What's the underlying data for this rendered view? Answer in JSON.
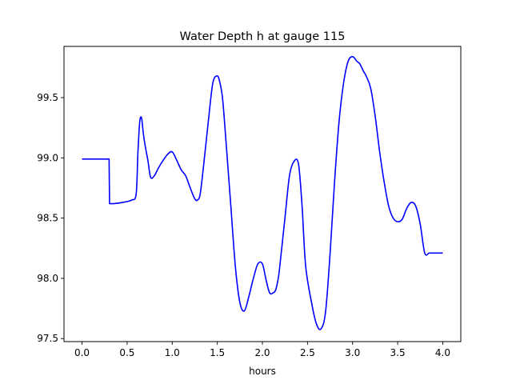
{
  "chart_data": {
    "type": "line",
    "title": "Water Depth h at gauge 115",
    "xlabel": "hours",
    "ylabel": "",
    "xlim": [
      -0.2,
      4.2
    ],
    "ylim": [
      97.475,
      99.925
    ],
    "x_ticks": [
      0.0,
      0.5,
      1.0,
      1.5,
      2.0,
      2.5,
      3.0,
      3.5,
      4.0
    ],
    "x_tick_labels": [
      "0.0",
      "0.5",
      "1.0",
      "1.5",
      "2.0",
      "2.5",
      "3.0",
      "3.5",
      "4.0"
    ],
    "y_ticks": [
      97.5,
      98.0,
      98.5,
      99.0,
      99.5
    ],
    "y_tick_labels": [
      "97.5",
      "98.0",
      "98.5",
      "99.0",
      "99.5"
    ],
    "grid": false,
    "series": [
      {
        "color": "#0000ff",
        "x": [
          0.0,
          0.15,
          0.3,
          0.305,
          0.35,
          0.45,
          0.55,
          0.6,
          0.62,
          0.64,
          0.66,
          0.68,
          0.7,
          0.73,
          0.76,
          0.8,
          0.85,
          0.9,
          0.95,
          1.0,
          1.05,
          1.1,
          1.15,
          1.2,
          1.25,
          1.28,
          1.31,
          1.35,
          1.4,
          1.45,
          1.5,
          1.53,
          1.56,
          1.6,
          1.65,
          1.7,
          1.75,
          1.8,
          1.85,
          1.9,
          1.95,
          2.0,
          2.04,
          2.08,
          2.12,
          2.15,
          2.18,
          2.2,
          2.25,
          2.3,
          2.35,
          2.4,
          2.44,
          2.48,
          2.55,
          2.6,
          2.65,
          2.7,
          2.75,
          2.8,
          2.85,
          2.9,
          2.95,
          3.0,
          3.05,
          3.08,
          3.12,
          3.15,
          3.2,
          3.25,
          3.3,
          3.35,
          3.4,
          3.45,
          3.5,
          3.55,
          3.6,
          3.65,
          3.7,
          3.75,
          3.8,
          3.85,
          3.9,
          3.95,
          4.0
        ],
        "y": [
          98.99,
          98.99,
          98.99,
          98.62,
          98.62,
          98.63,
          98.65,
          98.7,
          99.05,
          99.3,
          99.33,
          99.2,
          99.1,
          98.98,
          98.84,
          98.85,
          98.92,
          98.98,
          99.03,
          99.05,
          98.98,
          98.9,
          98.85,
          98.75,
          98.66,
          98.65,
          98.7,
          98.95,
          99.3,
          99.62,
          99.68,
          99.62,
          99.48,
          99.1,
          98.6,
          98.1,
          97.8,
          97.73,
          97.85,
          98.0,
          98.12,
          98.12,
          97.99,
          97.88,
          97.88,
          97.91,
          98.02,
          98.15,
          98.5,
          98.85,
          98.97,
          98.95,
          98.6,
          98.1,
          97.78,
          97.62,
          97.58,
          97.72,
          98.2,
          98.8,
          99.3,
          99.62,
          99.8,
          99.84,
          99.8,
          99.78,
          99.72,
          99.68,
          99.58,
          99.35,
          99.05,
          98.8,
          98.6,
          98.5,
          98.47,
          98.49,
          98.58,
          98.63,
          98.6,
          98.45,
          98.21,
          98.21,
          98.21,
          98.21,
          98.21
        ]
      }
    ]
  }
}
